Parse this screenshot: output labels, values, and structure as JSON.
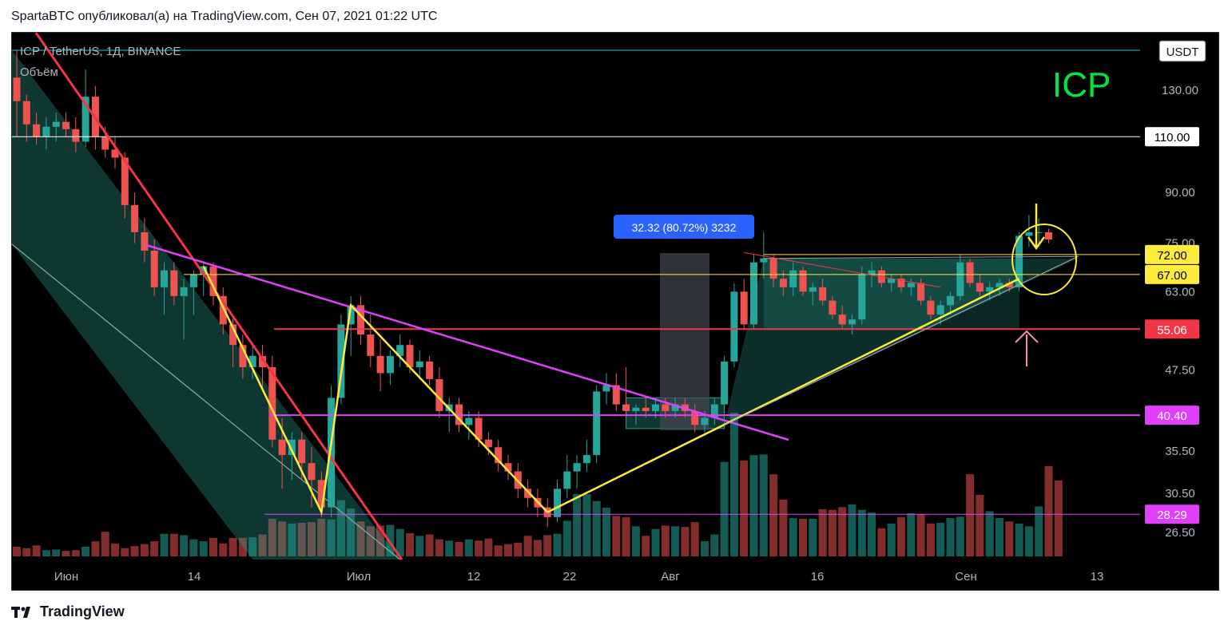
{
  "header": {
    "publish_line": "SpartaBTC опубликовал(а) на TradingView.com, Сен 07, 2021 01:22 UTC"
  },
  "footer": {
    "brand": "TradingView",
    "logo_icon": "tradingview-logo-icon"
  },
  "chart_data": {
    "type": "candlestick",
    "symbol_line": "ICP / TetherUS, 1Д, BINANCE",
    "volume_label": "Объём",
    "big_label": "ICP",
    "currency_label": "USDT",
    "measure_label": "32.32 (80.72%) 3232",
    "x_ticks": [
      "Июн",
      "14",
      "Июл",
      "12",
      "22",
      "Авг",
      "16",
      "Сен",
      "13"
    ],
    "y_ticks": [
      "130.00",
      "90.00",
      "75.00",
      "63.00",
      "47.50",
      "35.50",
      "30.50",
      "26.50"
    ],
    "price_tags": [
      {
        "label": "110.00",
        "value": 110,
        "bg": "#ffffff",
        "fg": "#000000"
      },
      {
        "label": "72.00",
        "value": 72,
        "bg": "#ffeb3b",
        "fg": "#000000"
      },
      {
        "label": "67.00",
        "value": 67,
        "bg": "#ffeb3b",
        "fg": "#000000"
      },
      {
        "label": "55.06",
        "value": 55.06,
        "bg": "#f23645",
        "fg": "#ffffff"
      },
      {
        "label": "40.40",
        "value": 40.4,
        "bg": "#e040fb",
        "fg": "#ffffff"
      },
      {
        "label": "28.29",
        "value": 28.29,
        "bg": "#e040fb",
        "fg": "#ffffff"
      }
    ],
    "colors": {
      "up": "#26a69a",
      "down": "#ef5350",
      "up_volume": "#26a69a",
      "down_volume": "#ef5350",
      "channel": "#2a9d8f",
      "yellow": "#ffeb3b",
      "red_line": "#f23645",
      "magenta": "#e040fb"
    },
    "candles": [
      {
        "o": 136,
        "h": 150,
        "l": 110,
        "c": 125
      },
      {
        "o": 125,
        "h": 128,
        "l": 108,
        "c": 115
      },
      {
        "o": 115,
        "h": 120,
        "l": 107,
        "c": 110
      },
      {
        "o": 110,
        "h": 118,
        "l": 105,
        "c": 114
      },
      {
        "o": 114,
        "h": 120,
        "l": 108,
        "c": 116
      },
      {
        "o": 116,
        "h": 120,
        "l": 110,
        "c": 113
      },
      {
        "o": 113,
        "h": 118,
        "l": 104,
        "c": 108
      },
      {
        "o": 108,
        "h": 140,
        "l": 106,
        "c": 127
      },
      {
        "o": 127,
        "h": 132,
        "l": 105,
        "c": 110
      },
      {
        "o": 110,
        "h": 114,
        "l": 102,
        "c": 105
      },
      {
        "o": 105,
        "h": 110,
        "l": 98,
        "c": 102
      },
      {
        "o": 102,
        "h": 104,
        "l": 82,
        "c": 86
      },
      {
        "o": 86,
        "h": 90,
        "l": 75,
        "c": 78
      },
      {
        "o": 78,
        "h": 82,
        "l": 70,
        "c": 73
      },
      {
        "o": 73,
        "h": 76,
        "l": 62,
        "c": 64
      },
      {
        "o": 64,
        "h": 70,
        "l": 58,
        "c": 68
      },
      {
        "o": 68,
        "h": 70,
        "l": 60,
        "c": 62
      },
      {
        "o": 62,
        "h": 66,
        "l": 53,
        "c": 64
      },
      {
        "o": 64,
        "h": 68,
        "l": 58,
        "c": 67
      },
      {
        "o": 67,
        "h": 70,
        "l": 62,
        "c": 69
      },
      {
        "o": 69,
        "h": 70,
        "l": 60,
        "c": 62
      },
      {
        "o": 62,
        "h": 64,
        "l": 54,
        "c": 56
      },
      {
        "o": 56,
        "h": 58,
        "l": 48,
        "c": 52
      },
      {
        "o": 52,
        "h": 54,
        "l": 46,
        "c": 48
      },
      {
        "o": 48,
        "h": 52,
        "l": 46,
        "c": 50
      },
      {
        "o": 50,
        "h": 52,
        "l": 44,
        "c": 48
      },
      {
        "o": 48,
        "h": 50,
        "l": 36,
        "c": 37
      },
      {
        "o": 37,
        "h": 40,
        "l": 31,
        "c": 35
      },
      {
        "o": 35,
        "h": 38,
        "l": 32,
        "c": 37
      },
      {
        "o": 37,
        "h": 38,
        "l": 32,
        "c": 34
      },
      {
        "o": 34,
        "h": 36,
        "l": 29,
        "c": 32
      },
      {
        "o": 32,
        "h": 33,
        "l": 28,
        "c": 29
      },
      {
        "o": 29,
        "h": 45,
        "l": 28,
        "c": 43
      },
      {
        "o": 43,
        "h": 58,
        "l": 42,
        "c": 56
      },
      {
        "o": 56,
        "h": 62,
        "l": 50,
        "c": 60
      },
      {
        "o": 60,
        "h": 62,
        "l": 52,
        "c": 54
      },
      {
        "o": 54,
        "h": 58,
        "l": 48,
        "c": 50
      },
      {
        "o": 50,
        "h": 53,
        "l": 44,
        "c": 47
      },
      {
        "o": 47,
        "h": 51,
        "l": 45,
        "c": 50
      },
      {
        "o": 50,
        "h": 54,
        "l": 48,
        "c": 52
      },
      {
        "o": 52,
        "h": 53,
        "l": 47,
        "c": 48
      },
      {
        "o": 48,
        "h": 51,
        "l": 46,
        "c": 49
      },
      {
        "o": 49,
        "h": 50,
        "l": 45,
        "c": 46
      },
      {
        "o": 46,
        "h": 48,
        "l": 40,
        "c": 41
      },
      {
        "o": 41,
        "h": 43,
        "l": 38,
        "c": 42
      },
      {
        "o": 42,
        "h": 43,
        "l": 38,
        "c": 39
      },
      {
        "o": 39,
        "h": 41,
        "l": 37,
        "c": 40
      },
      {
        "o": 40,
        "h": 41,
        "l": 36,
        "c": 37
      },
      {
        "o": 37,
        "h": 38,
        "l": 35,
        "c": 36
      },
      {
        "o": 36,
        "h": 37,
        "l": 33,
        "c": 34
      },
      {
        "o": 34,
        "h": 35,
        "l": 32,
        "c": 33
      },
      {
        "o": 33,
        "h": 34,
        "l": 30,
        "c": 31
      },
      {
        "o": 31,
        "h": 32,
        "l": 29,
        "c": 30
      },
      {
        "o": 30,
        "h": 31,
        "l": 28,
        "c": 29
      },
      {
        "o": 29,
        "h": 30,
        "l": 27,
        "c": 28
      },
      {
        "o": 28,
        "h": 32,
        "l": 27.5,
        "c": 31
      },
      {
        "o": 31,
        "h": 35,
        "l": 30,
        "c": 33
      },
      {
        "o": 33,
        "h": 35,
        "l": 31,
        "c": 34
      },
      {
        "o": 34,
        "h": 37,
        "l": 33,
        "c": 35
      },
      {
        "o": 35,
        "h": 45,
        "l": 34,
        "c": 44
      },
      {
        "o": 44,
        "h": 47,
        "l": 42,
        "c": 45
      },
      {
        "o": 45,
        "h": 47,
        "l": 41,
        "c": 42
      },
      {
        "o": 42,
        "h": 48,
        "l": 40,
        "c": 41
      },
      {
        "o": 41,
        "h": 42,
        "l": 39,
        "c": 41.5
      },
      {
        "o": 41.5,
        "h": 43,
        "l": 40,
        "c": 41
      },
      {
        "o": 41,
        "h": 43,
        "l": 40,
        "c": 42
      },
      {
        "o": 42,
        "h": 43,
        "l": 40,
        "c": 41
      },
      {
        "o": 41,
        "h": 43,
        "l": 40,
        "c": 42
      },
      {
        "o": 42,
        "h": 43,
        "l": 40,
        "c": 41
      },
      {
        "o": 41,
        "h": 42,
        "l": 38,
        "c": 39
      },
      {
        "o": 39,
        "h": 41,
        "l": 38,
        "c": 40
      },
      {
        "o": 40,
        "h": 43,
        "l": 39,
        "c": 42
      },
      {
        "o": 42,
        "h": 50,
        "l": 41,
        "c": 49
      },
      {
        "o": 49,
        "h": 65,
        "l": 48,
        "c": 63
      },
      {
        "o": 63,
        "h": 66,
        "l": 55,
        "c": 56
      },
      {
        "o": 56,
        "h": 72,
        "l": 55,
        "c": 70
      },
      {
        "o": 70,
        "h": 78,
        "l": 66,
        "c": 71
      },
      {
        "o": 71,
        "h": 72,
        "l": 64,
        "c": 66
      },
      {
        "o": 66,
        "h": 68,
        "l": 62,
        "c": 64
      },
      {
        "o": 64,
        "h": 70,
        "l": 62,
        "c": 68
      },
      {
        "o": 68,
        "h": 69,
        "l": 62,
        "c": 63
      },
      {
        "o": 63,
        "h": 65,
        "l": 60,
        "c": 64
      },
      {
        "o": 64,
        "h": 66,
        "l": 60,
        "c": 61
      },
      {
        "o": 61,
        "h": 62,
        "l": 57,
        "c": 58
      },
      {
        "o": 58,
        "h": 60,
        "l": 55,
        "c": 56
      },
      {
        "o": 56,
        "h": 58,
        "l": 54,
        "c": 57
      },
      {
        "o": 57,
        "h": 69,
        "l": 56,
        "c": 67
      },
      {
        "o": 67,
        "h": 70,
        "l": 64,
        "c": 68
      },
      {
        "o": 68,
        "h": 69,
        "l": 64,
        "c": 65
      },
      {
        "o": 65,
        "h": 67,
        "l": 63,
        "c": 66
      },
      {
        "o": 66,
        "h": 67,
        "l": 63,
        "c": 64
      },
      {
        "o": 64,
        "h": 66,
        "l": 62,
        "c": 65
      },
      {
        "o": 65,
        "h": 66,
        "l": 60,
        "c": 61
      },
      {
        "o": 61,
        "h": 62,
        "l": 57,
        "c": 58
      },
      {
        "o": 58,
        "h": 61,
        "l": 56,
        "c": 60
      },
      {
        "o": 60,
        "h": 63,
        "l": 58,
        "c": 62
      },
      {
        "o": 62,
        "h": 72,
        "l": 61,
        "c": 70
      },
      {
        "o": 70,
        "h": 71,
        "l": 64,
        "c": 65
      },
      {
        "o": 65,
        "h": 67,
        "l": 62,
        "c": 63
      },
      {
        "o": 63,
        "h": 65,
        "l": 61,
        "c": 64
      },
      {
        "o": 64,
        "h": 66,
        "l": 62,
        "c": 65
      },
      {
        "o": 65,
        "h": 66,
        "l": 63,
        "c": 64
      },
      {
        "o": 64,
        "h": 78,
        "l": 63,
        "c": 77
      },
      {
        "o": 77,
        "h": 83,
        "l": 74,
        "c": 78
      },
      {
        "o": 78,
        "h": 82,
        "l": 74,
        "c": 78
      },
      {
        "o": 78,
        "h": 79,
        "l": 75,
        "c": 76
      }
    ],
    "volumes": [
      14,
      12,
      16,
      9,
      10,
      8,
      9,
      14,
      22,
      36,
      19,
      12,
      15,
      18,
      22,
      33,
      33,
      31,
      25,
      22,
      27,
      19,
      27,
      27,
      28,
      32,
      55,
      51,
      48,
      49,
      50,
      55,
      54,
      82,
      70,
      51,
      44,
      45,
      46,
      40,
      34,
      30,
      32,
      25,
      23,
      21,
      25,
      23,
      26,
      16,
      18,
      20,
      30,
      24,
      31,
      33,
      52,
      91,
      91,
      81,
      71,
      59,
      57,
      44,
      30,
      40,
      45,
      44,
      43,
      50,
      22,
      32,
      138,
      210,
      140,
      148,
      149,
      120,
      83,
      56,
      55,
      55,
      69,
      68,
      72,
      76,
      68,
      64,
      41,
      48,
      57,
      63,
      62,
      48,
      49,
      56,
      58,
      120,
      90,
      66,
      56,
      51,
      48,
      44,
      73,
      132,
      111
    ],
    "volume_colors": "match_candle"
  }
}
